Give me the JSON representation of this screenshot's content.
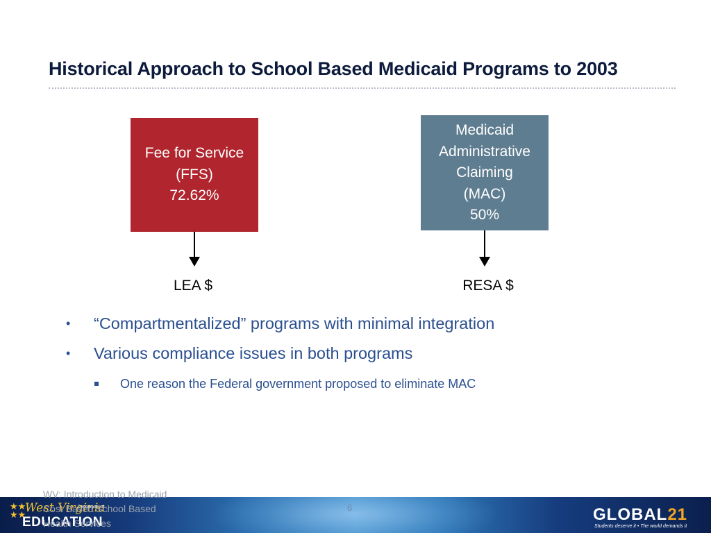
{
  "slide": {
    "title": "Historical Approach to School Based Medicaid Programs to 2003"
  },
  "diagram": {
    "ffs": {
      "lines": [
        "Fee for Service",
        "(FFS)",
        "72.62%"
      ],
      "color": "#b0252e",
      "destination": "LEA $"
    },
    "mac": {
      "lines": [
        "Medicaid",
        "Administrative",
        "Claiming",
        "(MAC)",
        "50%"
      ],
      "color": "#5f7d90",
      "destination": "RESA $"
    }
  },
  "bullets": [
    "“Compartmentalized” programs with minimal integration",
    "Various compliance issues in both programs"
  ],
  "sub_bullets": [
    "One reason the Federal government proposed to eliminate MAC"
  ],
  "footer": {
    "text_lines": [
      "WV: Introduction to Medicaid",
      "Cost Based School Based",
      "Health Services"
    ],
    "page_number": "6",
    "left_logo": {
      "script": "West Virginia",
      "dept": "Department of",
      "word": "EDUCATION"
    },
    "right_logo": {
      "word_prefix": "GLOBAL",
      "word_number": "21",
      "tagline": "Students deserve it • The world demands it"
    }
  },
  "colors": {
    "title": "#0c1a3c",
    "bullet_text": "#2a4f8f",
    "accent_gold": "#f2c230"
  }
}
